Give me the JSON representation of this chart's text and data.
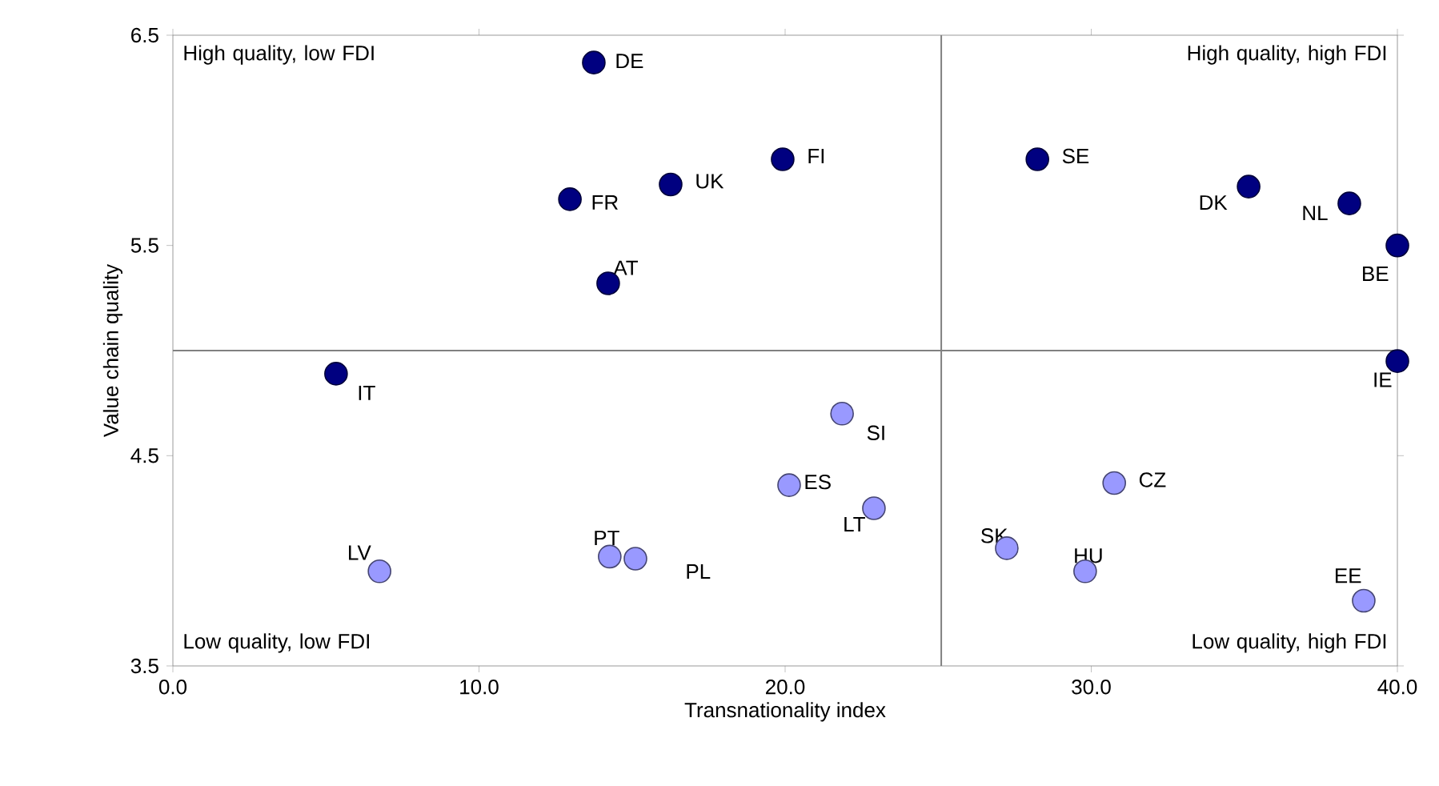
{
  "chart_data": {
    "type": "scatter",
    "xlabel": "Transnationality index",
    "ylabel": "Value chain quality",
    "xlim": [
      0,
      40
    ],
    "ylim": [
      3.5,
      6.5
    ],
    "xticks": [
      {
        "value": 0,
        "label": "0.0"
      },
      {
        "value": 10,
        "label": "10.0"
      },
      {
        "value": 20,
        "label": "20.0"
      },
      {
        "value": 30,
        "label": "30.0"
      },
      {
        "value": 40,
        "label": "40.0"
      }
    ],
    "yticks": [
      3.5,
      4.5,
      5.5,
      6.5
    ],
    "marker": "circle",
    "grid": false,
    "series": [
      {
        "color": "#000080",
        "x": [
          13.75,
          12.97,
          16.26,
          19.92,
          14.22,
          28.24,
          35.14,
          38.43,
          40.0,
          40.0,
          5.33
        ],
        "values": [
          6.37,
          5.72,
          5.79,
          5.91,
          5.32,
          5.91,
          5.78,
          5.7,
          5.5,
          4.95,
          4.89
        ]
      },
      {
        "color": "#9999ff",
        "x": [
          21.86,
          20.13,
          22.9,
          30.75,
          27.24,
          29.8,
          38.9,
          6.75,
          14.27,
          15.11
        ],
        "values": [
          4.7,
          4.36,
          4.25,
          4.37,
          4.06,
          3.95,
          3.81,
          3.95,
          4.02,
          4.01
        ]
      }
    ],
    "ref_lines": [
      {
        "axis": "x",
        "value": 25.1,
        "color": "#808080"
      },
      {
        "axis": "y",
        "value": 5.0,
        "color": "#808080"
      }
    ],
    "annotations": [
      "High quality, low FDI",
      "High quality, high FDI",
      "Low quality, low FDI",
      "Low quality, high FDI",
      {
        "text": "DE",
        "x": 13.75,
        "y": 6.37
      },
      {
        "text": "FR",
        "x": 12.97,
        "y": 5.72
      },
      {
        "text": "UK",
        "x": 16.26,
        "y": 5.79
      },
      {
        "text": "FI",
        "x": 19.92,
        "y": 5.91
      },
      {
        "text": "AT",
        "x": 14.22,
        "y": 5.32
      },
      {
        "text": "SE",
        "x": 28.24,
        "y": 5.91
      },
      {
        "text": "DK",
        "x": 35.14,
        "y": 5.78
      },
      {
        "text": "NL",
        "x": 38.43,
        "y": 5.7
      },
      {
        "text": "BE",
        "x": 40.0,
        "y": 5.5
      },
      {
        "text": "IE",
        "x": 40.0,
        "y": 4.95
      },
      {
        "text": "IT",
        "x": 5.33,
        "y": 4.89
      },
      {
        "text": "SI",
        "x": 21.86,
        "y": 4.7
      },
      {
        "text": "ES",
        "x": 20.13,
        "y": 4.36
      },
      {
        "text": "LT",
        "x": 22.9,
        "y": 4.25
      },
      {
        "text": "CZ",
        "x": 30.75,
        "y": 4.37
      },
      {
        "text": "SK",
        "x": 27.24,
        "y": 4.06
      },
      {
        "text": "HU",
        "x": 29.8,
        "y": 3.95
      },
      {
        "text": "EE",
        "x": 38.9,
        "y": 3.81
      },
      {
        "text": "LV",
        "x": 6.75,
        "y": 3.95
      },
      {
        "text": "PT",
        "x": 14.27,
        "y": 4.02
      },
      {
        "text": "PL",
        "x": 15.11,
        "y": 4.01
      }
    ]
  }
}
